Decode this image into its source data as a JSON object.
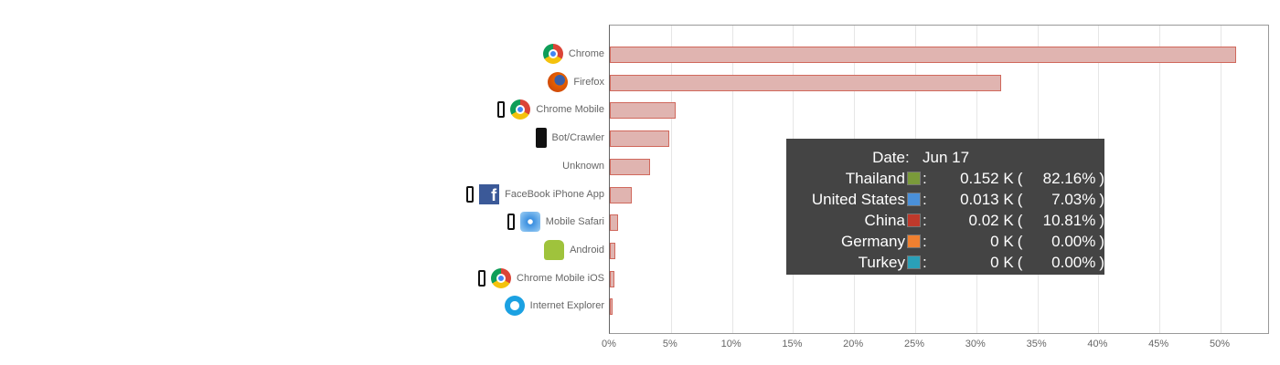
{
  "chart_data": {
    "type": "bar",
    "orientation": "horizontal",
    "categories": [
      "Chrome",
      "Firefox",
      "Chrome Mobile",
      "Bot/Crawler",
      "Unknown",
      "FaceBook iPhone App",
      "Mobile Safari",
      "Android",
      "Chrome Mobile iOS",
      "Internet Explorer"
    ],
    "values": [
      51.3,
      32.0,
      5.4,
      4.9,
      3.3,
      1.8,
      0.7,
      0.45,
      0.4,
      0.25
    ],
    "category_icons": [
      "chrome-icon",
      "firefox-icon",
      "phone-icon+chrome-icon",
      "robot-icon",
      "",
      "phone-icon+facebook-icon",
      "phone-icon+safari-icon",
      "android-icon",
      "phone-icon+chrome-icon",
      "internet-explorer-icon"
    ],
    "xlim": [
      0,
      54
    ],
    "xticks": [
      "0%",
      "5%",
      "10%",
      "15%",
      "20%",
      "25%",
      "30%",
      "35%",
      "40%",
      "45%",
      "50%"
    ],
    "grid": true,
    "bar_color": "#e0b4b0",
    "bar_edge_color": "#d0685c"
  },
  "tooltip": {
    "date_label": "Date",
    "date": "Jun 17",
    "rows": [
      {
        "name": "Thailand",
        "color": "#7a9a3a",
        "value": "0.152 K",
        "pct": "82.16%"
      },
      {
        "name": "United States",
        "color": "#4a90d9",
        "value": "0.013 K",
        "pct": "7.03%"
      },
      {
        "name": "China",
        "color": "#c0392b",
        "value": "0.02 K",
        "pct": "10.81%"
      },
      {
        "name": "Germany",
        "color": "#f08030",
        "value": "0 K",
        "pct": "0.00%"
      },
      {
        "name": "Turkey",
        "color": "#2aa0b8",
        "value": "0 K",
        "pct": "0.00%"
      }
    ]
  }
}
